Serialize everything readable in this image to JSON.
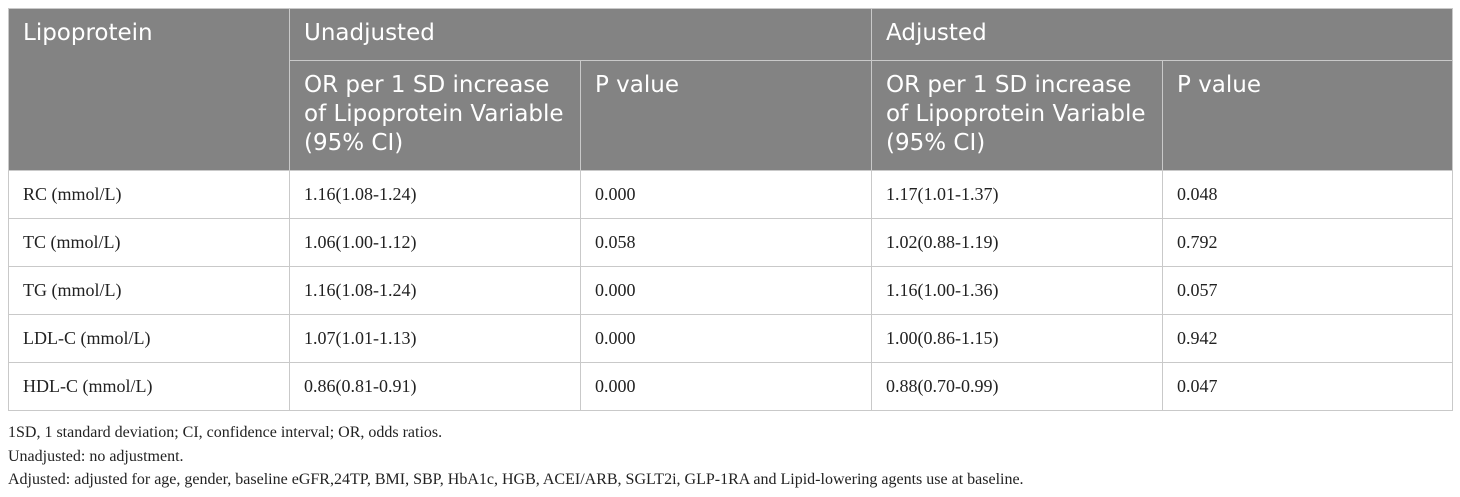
{
  "table": {
    "headers": {
      "lipoprotein": "Lipoprotein",
      "unadjusted": "Unadjusted",
      "adjusted": "Adjusted",
      "or_label": "OR per 1 SD increase of Lipoprotein Variable (95% CI)",
      "p_label": "P value"
    },
    "rows": [
      {
        "name": "RC (mmol/L)",
        "unadj_or": "1.16(1.08-1.24)",
        "unadj_p": "0.000",
        "adj_or": "1.17(1.01-1.37)",
        "adj_p": "0.048"
      },
      {
        "name": "TC (mmol/L)",
        "unadj_or": "1.06(1.00-1.12)",
        "unadj_p": "0.058",
        "adj_or": "1.02(0.88-1.19)",
        "adj_p": "0.792"
      },
      {
        "name": "TG (mmol/L)",
        "unadj_or": "1.16(1.08-1.24)",
        "unadj_p": "0.000",
        "adj_or": "1.16(1.00-1.36)",
        "adj_p": "0.057"
      },
      {
        "name": "LDL-C (mmol/L)",
        "unadj_or": "1.07(1.01-1.13)",
        "unadj_p": "0.000",
        "adj_or": "1.00(0.86-1.15)",
        "adj_p": "0.942"
      },
      {
        "name": "HDL-C (mmol/L)",
        "unadj_or": "0.86(0.81-0.91)",
        "unadj_p": "0.000",
        "adj_or": "0.88(0.70-0.99)",
        "adj_p": "0.047"
      }
    ]
  },
  "footnotes": [
    "1SD, 1 standard deviation; CI, confidence interval; OR, odds ratios.",
    "Unadjusted: no adjustment.",
    "Adjusted: adjusted for age, gender, baseline eGFR,24TP, BMI, SBP, HbA1c, HGB, ACEI/ARB, SGLT2i, GLP-1RA and Lipid-lowering agents use at baseline."
  ]
}
